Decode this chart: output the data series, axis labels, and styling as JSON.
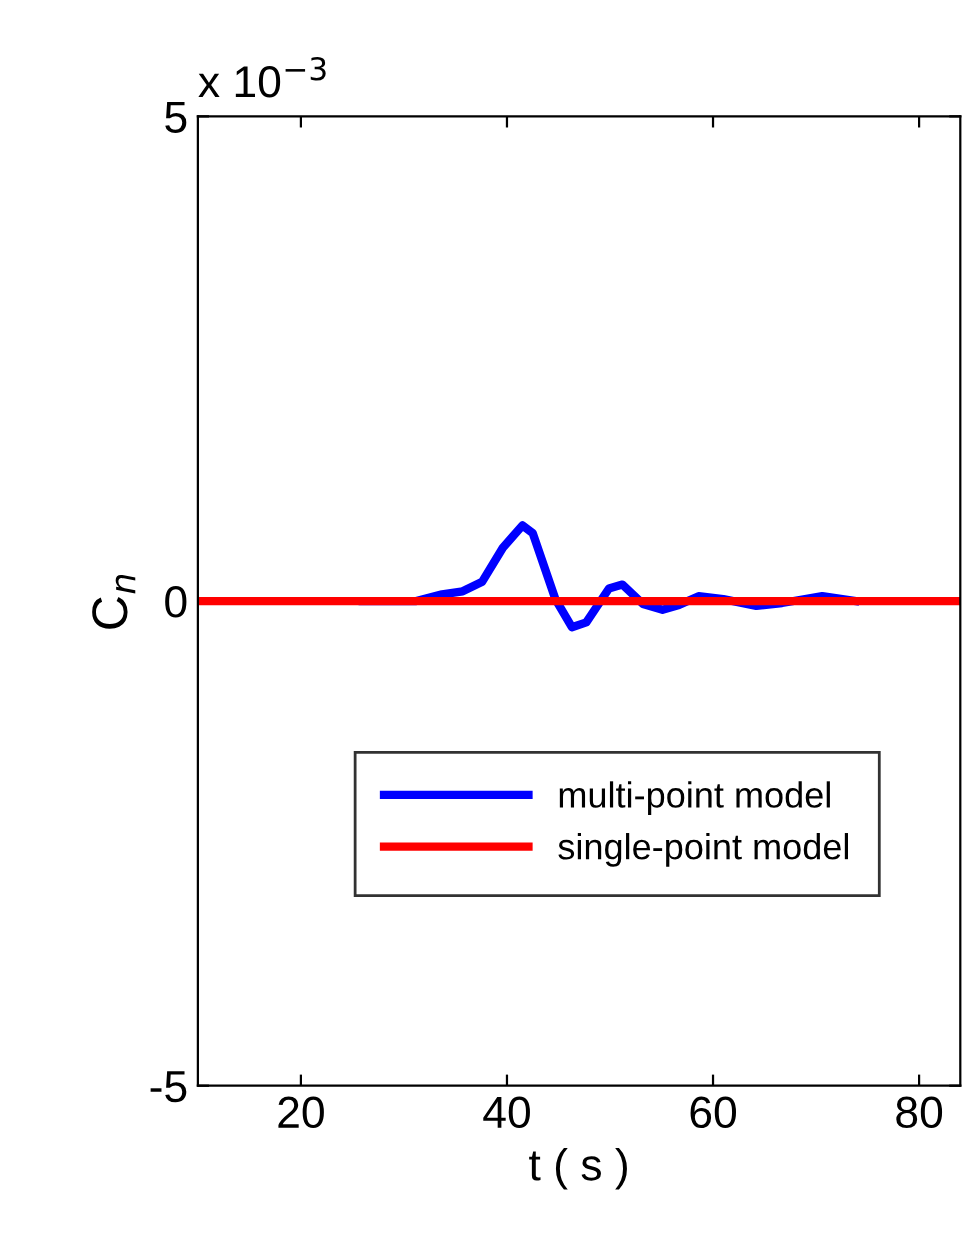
{
  "chart_data": {
    "type": "line",
    "xlabel": "t ( s )",
    "ylabel": "C$_{n}$",
    "annotations": [
      "x 10$^{−3}$"
    ],
    "xlim": [
      10,
      84
    ],
    "xticks": [
      20,
      40,
      60,
      80
    ],
    "ylim": [
      -5,
      5
    ],
    "yticks": [
      -5,
      0,
      5
    ],
    "grid": false,
    "legend": "bottom",
    "line_style": "solid",
    "marker": "none",
    "series": [
      {
        "name": "multi-point model",
        "color": "#0000ff",
        "x": [
          26,
          31.2,
          33.7,
          35.7,
          37.6,
          39.6,
          41.5,
          42.5,
          44.7,
          46.3,
          47.7,
          49.9,
          51.2,
          53.2,
          55.1,
          56.7,
          58.6,
          61,
          64.2,
          66.7,
          70.6,
          73.8
        ],
        "values": [
          0,
          0,
          0.07,
          0.1,
          0.2,
          0.55,
          0.78,
          0.7,
          0.02,
          -0.27,
          -0.22,
          0.13,
          0.17,
          -0.03,
          -0.09,
          -0.04,
          0.05,
          0.02,
          -0.05,
          -0.02,
          0.05,
          0
        ]
      },
      {
        "name": "single-point model",
        "color": "#ff0000",
        "x": [
          10,
          84
        ],
        "values": [
          0,
          0
        ]
      }
    ]
  }
}
